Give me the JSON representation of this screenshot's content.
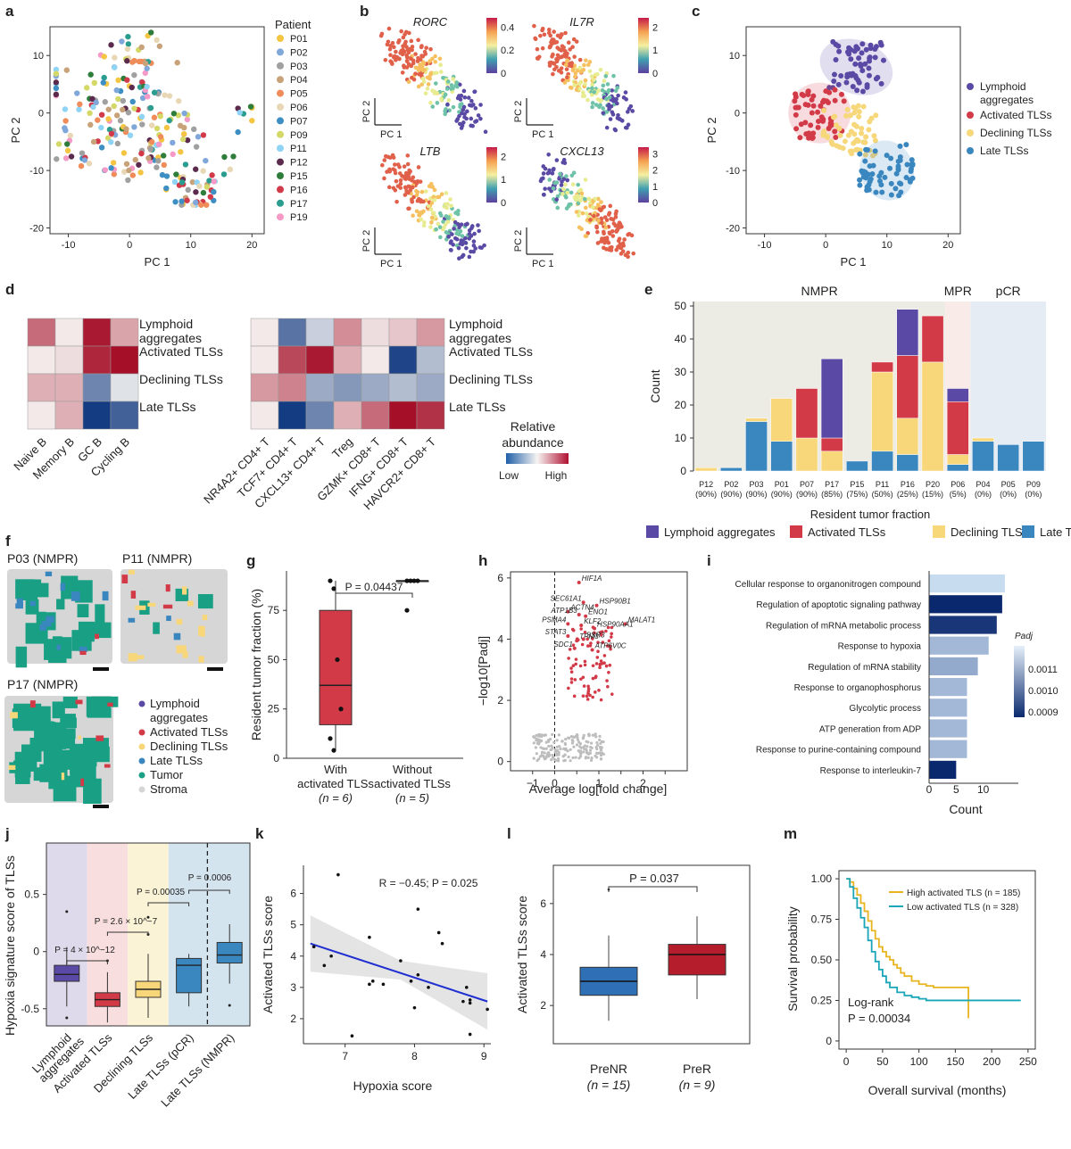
{
  "panel_labels": {
    "a": "a",
    "b": "b",
    "c": "c",
    "d": "d",
    "e": "e",
    "f": "f",
    "g": "g",
    "h": "h",
    "i": "i",
    "j": "j",
    "k": "k",
    "l": "l",
    "m": "m"
  },
  "colors": {
    "P01": "#f4c542",
    "P02": "#7fa7d9",
    "P03": "#a0a0a0",
    "P04": "#c8a279",
    "P05": "#f08b5a",
    "P06": "#e8d7b4",
    "P07": "#3d8fc3",
    "P09": "#d3d866",
    "P11": "#8fd3f5",
    "P12": "#5b2a4d",
    "P15": "#2f7d3b",
    "P16": "#d23a4a",
    "P17": "#2a9d8f",
    "P19": "#f59ac7",
    "lymphoid": "#5b4aa5",
    "activated": "#d33a48",
    "declining": "#f8d77a",
    "late": "#3a87c0",
    "tumor": "#19a084",
    "stroma": "#d6d6d6"
  },
  "panel_a": {
    "chart_data": {
      "type": "scatter",
      "xlabel": "PC 1",
      "ylabel": "PC 2",
      "xlim": [
        -13,
        22
      ],
      "ylim": [
        -21,
        15
      ],
      "xticks": [
        -10,
        0,
        10,
        20
      ],
      "yticks": [
        -20,
        -10,
        0,
        10
      ],
      "legend_title": "Patient",
      "legend": [
        "P01",
        "P02",
        "P03",
        "P04",
        "P05",
        "P06",
        "P07",
        "P09",
        "P11",
        "P12",
        "P15",
        "P16",
        "P17",
        "P19"
      ],
      "points": [
        [
          -12,
          6
        ],
        [
          -10,
          -5
        ],
        [
          -8,
          -2
        ],
        [
          -6,
          4
        ],
        [
          -5,
          -7
        ],
        [
          -4,
          1
        ],
        [
          -3,
          -3
        ],
        [
          -2,
          7
        ],
        [
          -1,
          -1
        ],
        [
          0,
          3
        ],
        [
          1,
          -5
        ],
        [
          2,
          12
        ],
        [
          3,
          2
        ],
        [
          4,
          -8
        ],
        [
          5,
          6
        ],
        [
          6,
          -2
        ],
        [
          7,
          -10
        ],
        [
          8,
          0
        ],
        [
          9,
          -13
        ],
        [
          10,
          -6
        ],
        [
          11,
          -14
        ],
        [
          12,
          -15
        ],
        [
          13,
          -12
        ],
        [
          14,
          -10
        ],
        [
          20,
          -2
        ],
        [
          -3,
          9
        ],
        [
          0,
          10
        ],
        [
          2,
          -9
        ],
        [
          5,
          -4
        ],
        [
          -1,
          -8
        ]
      ]
    }
  },
  "panel_b": {
    "genes": [
      "RORC",
      "IL7R",
      "LTB",
      "CXCL13"
    ],
    "scales": [
      [
        "0",
        "0.2",
        "0.4"
      ],
      [
        "0",
        "1",
        "2"
      ],
      [
        "0",
        "1",
        "2"
      ],
      [
        "0",
        "1",
        "2",
        "3"
      ]
    ],
    "xlabel": "PC 1",
    "ylabel": "PC 2"
  },
  "panel_c": {
    "chart_data": {
      "type": "scatter",
      "xlabel": "PC 1",
      "ylabel": "PC 2",
      "xlim": [
        -13,
        22
      ],
      "ylim": [
        -21,
        15
      ],
      "xticks": [
        -10,
        0,
        10,
        20
      ],
      "yticks": [
        -20,
        -10,
        0,
        10
      ],
      "legend": [
        "Lymphoid aggregates",
        "Activated TLSs",
        "Declining TLSs",
        "Late TLSs"
      ],
      "centers": [
        [
          5,
          8
        ],
        [
          -1,
          0
        ],
        [
          4,
          -3
        ],
        [
          10,
          -10
        ]
      ]
    }
  },
  "panel_d": {
    "chart_data": {
      "type": "heatmap",
      "rows": [
        "Lymphoid aggregates",
        "Activated TLSs",
        "Declining TLSs",
        "Late TLSs"
      ],
      "row_lines": [
        [
          "Lymphoid",
          "aggregates"
        ],
        [
          "Activated TLSs"
        ],
        [
          "Declining TLSs"
        ],
        [
          "Late TLSs"
        ]
      ],
      "cols_b": [
        "Naive B",
        "Memory B",
        "GC B",
        "Cycling B"
      ],
      "cols_t": [
        "NR4A2+ CD4+ T",
        "TCF7+ CD4+ T",
        "CXCL13+ CD4+ T",
        "Treg",
        "GZMK+ CD8+ T",
        "IFNG+ CD8+ T",
        "HAVCR2+ CD8+ T"
      ],
      "values_b": [
        [
          0.6,
          0.05,
          0.95,
          0.35
        ],
        [
          0.05,
          0.1,
          0.9,
          1.0
        ],
        [
          0.3,
          0.3,
          -0.6,
          -0.1
        ],
        [
          0.05,
          0.3,
          -1.0,
          -0.8
        ]
      ],
      "values_t": [
        [
          0.05,
          -0.7,
          -0.2,
          0.45,
          0.1,
          0.2,
          0.4
        ],
        [
          0.05,
          0.75,
          0.95,
          0.3,
          0.05,
          -0.95,
          -0.3
        ],
        [
          0.4,
          0.5,
          -0.4,
          -0.5,
          -0.4,
          -0.3,
          -0.4
        ],
        [
          0.05,
          -1.0,
          -0.6,
          0.3,
          0.6,
          1.0,
          0.85
        ]
      ],
      "legend_title": [
        "Relative",
        "abundance"
      ],
      "legend_low": "Low",
      "legend_high": "High"
    }
  },
  "panel_e": {
    "chart_data": {
      "type": "bar",
      "ylabel": "Count",
      "xlabel": "Resident tumor fraction",
      "ylim": [
        0,
        50
      ],
      "yticks": [
        0,
        10,
        20,
        30,
        40,
        50
      ],
      "groups": [
        "NMPR",
        "MPR",
        "pCR"
      ],
      "categories": [
        "P12",
        "P02",
        "P03",
        "P01",
        "P07",
        "P17",
        "P15",
        "P11",
        "P16",
        "P20",
        "P06",
        "P04",
        "P05",
        "P09"
      ],
      "fractions": [
        "(90%)",
        "(90%)",
        "(90%)",
        "(90%)",
        "(90%)",
        "(85%)",
        "(75%)",
        "(50%)",
        "(25%)",
        "(15%)",
        "(5%)",
        "(0%)",
        "(0%)",
        "(0%)"
      ],
      "series": [
        {
          "name": "Late TLSs",
          "values": [
            0,
            1,
            15,
            9,
            0,
            0,
            3,
            6,
            5,
            0,
            2,
            9,
            8,
            9
          ]
        },
        {
          "name": "Declining TLSs",
          "values": [
            1,
            0,
            1,
            13,
            10,
            6,
            0,
            24,
            11,
            33,
            3,
            1,
            0,
            0
          ]
        },
        {
          "name": "Activated TLSs",
          "values": [
            0,
            0,
            0,
            0,
            15,
            4,
            0,
            3,
            19,
            14,
            16,
            0,
            0,
            0
          ]
        },
        {
          "name": "Lymphoid aggregates",
          "values": [
            0,
            0,
            0,
            0,
            0,
            24,
            0,
            0,
            14,
            0,
            4,
            0,
            0,
            0
          ]
        }
      ],
      "legend": [
        "Lymphoid aggregates",
        "Activated TLSs",
        "Declining TLSs",
        "Late TLSs"
      ]
    }
  },
  "panel_f": {
    "titles": [
      "P03 (NMPR)",
      "P11 (NMPR)",
      "P17 (NMPR)"
    ],
    "legend": [
      [
        "Lymphoid",
        "aggregates"
      ],
      [
        "Activated TLSs"
      ],
      [
        "Declining TLSs"
      ],
      [
        "Late TLSs"
      ],
      [
        "Tumor"
      ],
      [
        "Stroma"
      ]
    ]
  },
  "panel_g": {
    "chart_data": {
      "type": "box",
      "ylabel": "Resident tumor fraction (%)",
      "ylim": [
        0,
        95
      ],
      "yticks": [
        0,
        25,
        50,
        75
      ],
      "groups": [
        {
          "lines": [
            "With",
            "activated TLSs",
            "(n = 6)"
          ],
          "q1": 17,
          "median": 37,
          "q3": 75,
          "min": 4,
          "max": 90,
          "points": [
            90,
            86,
            50,
            25,
            10,
            4
          ]
        },
        {
          "lines": [
            "Without",
            "activated TLSs",
            "(n = 5)"
          ],
          "q1": 90,
          "median": 90,
          "q3": 90,
          "min": 90,
          "max": 90,
          "points": [
            90,
            90,
            90,
            90,
            75
          ]
        }
      ],
      "annotation": "P = 0.04437"
    }
  },
  "panel_h": {
    "chart_data": {
      "type": "volcano",
      "xlabel": "Average log[fold change]",
      "ylabel": "−log10[Padj]",
      "xlim": [
        -1,
        3
      ],
      "ylim": [
        -0.3,
        6.2
      ],
      "xticks": [
        -0.5,
        0,
        0.5,
        1,
        1.5,
        2,
        2.5
      ],
      "yticks": [
        0,
        2,
        4,
        6
      ],
      "genes": [
        "HIF1A",
        "SEC61A1",
        "HSP90B1",
        "ACTN4",
        "ATP1B3",
        "ENO1",
        "MALAT1",
        "PSMA4",
        "KLF2",
        "HSP90AA1",
        "STAT3",
        "TPM3",
        "SSR3",
        "SDC1",
        "ATP6V0C"
      ],
      "gene_points": [
        [
          0.55,
          5.85
        ],
        [
          0.65,
          5.2
        ],
        [
          0.95,
          5.1
        ],
        [
          0.3,
          4.9
        ],
        [
          0.55,
          4.8
        ],
        [
          0.7,
          4.75
        ],
        [
          1.6,
          4.5
        ],
        [
          0.3,
          4.5
        ],
        [
          0.6,
          4.45
        ],
        [
          0.9,
          4.35
        ],
        [
          0.3,
          4.1
        ],
        [
          0.5,
          3.95
        ],
        [
          0.65,
          4.0
        ],
        [
          0.45,
          3.7
        ],
        [
          0.85,
          3.65
        ]
      ]
    }
  },
  "panel_i": {
    "chart_data": {
      "type": "bar",
      "xlabel": "Count",
      "xlim": [
        0,
        15
      ],
      "xticks": [
        0,
        5,
        10
      ],
      "categories": [
        "Cellular response to organonitrogen compound",
        "Regulation of apoptotic signaling pathway",
        "Regulation of mRNA metabolic process",
        "Response to hypoxia",
        "Regulation of mRNA stability",
        "Response to organophosphorus",
        "Glycolytic process",
        "ATP generation from ADP",
        "Response to purine-containing compound",
        "Response to interleukin-7"
      ],
      "values": [
        14,
        13.5,
        12.5,
        11,
        9,
        7,
        7,
        7,
        7,
        5
      ],
      "padj": [
        0.00115,
        0.0009,
        0.00092,
        0.0011,
        0.00108,
        0.0011,
        0.0011,
        0.0011,
        0.0011,
        0.0009
      ],
      "legend_title": "Padj",
      "legend_ticks": [
        "0.0011",
        "0.0010",
        "0.0009"
      ]
    }
  },
  "panel_j": {
    "chart_data": {
      "type": "box",
      "ylabel": "Hypoxia signature score of TLSs",
      "ylim": [
        -0.65,
        0.95
      ],
      "yticks": [
        -0.5,
        0,
        0.5
      ],
      "categories": [
        [
          "Lymphoid",
          "aggregates"
        ],
        [
          "Activated TLSs"
        ],
        [
          "Declining TLSs"
        ],
        [
          "Late TLSs (pCR)"
        ],
        [
          "Late TLSs (NMPR)"
        ]
      ],
      "boxes": [
        {
          "q1": -0.26,
          "median": -0.2,
          "q3": -0.12,
          "min": -0.48,
          "max": 0.04,
          "out": [
            -0.58,
            0.35
          ]
        },
        {
          "q1": -0.48,
          "median": -0.42,
          "q3": -0.36,
          "min": -0.62,
          "max": -0.18,
          "out": [
            -0.08
          ]
        },
        {
          "q1": -0.4,
          "median": -0.33,
          "q3": -0.26,
          "min": -0.58,
          "max": -0.02,
          "out": [
            0.15,
            0.3
          ]
        },
        {
          "q1": -0.36,
          "median": -0.12,
          "q3": -0.06,
          "min": -0.48,
          "max": -0.02,
          "out": []
        },
        {
          "q1": -0.1,
          "median": -0.03,
          "q3": 0.08,
          "min": -0.28,
          "max": 0.24,
          "out": [
            -0.47
          ]
        }
      ],
      "annotations": [
        "P = 4 × 10^−12",
        "P = 2.6 × 10^−7",
        "P = 0.00035",
        "P = 0.0006"
      ]
    }
  },
  "panel_k": {
    "chart_data": {
      "type": "scatter",
      "xlabel": "Hypoxia score",
      "ylabel": "Activated TLSs score",
      "xlim": [
        6.4,
        9.1
      ],
      "ylim": [
        1.2,
        6.9
      ],
      "xticks": [
        7,
        8,
        9
      ],
      "yticks": [
        2,
        3,
        4,
        5,
        6
      ],
      "points": [
        [
          6.9,
          6.6
        ],
        [
          8.05,
          5.5
        ],
        [
          8.35,
          4.75
        ],
        [
          8.4,
          4.4
        ],
        [
          7.35,
          4.6
        ],
        [
          6.55,
          4.3
        ],
        [
          6.7,
          3.7
        ],
        [
          6.8,
          4.0
        ],
        [
          7.8,
          3.85
        ],
        [
          7.4,
          3.2
        ],
        [
          7.35,
          3.1
        ],
        [
          7.55,
          3.1
        ],
        [
          7.95,
          3.2
        ],
        [
          8.05,
          3.4
        ],
        [
          8.2,
          3.0
        ],
        [
          8.75,
          3.0
        ],
        [
          8.7,
          2.55
        ],
        [
          8.8,
          2.6
        ],
        [
          8.8,
          2.5
        ],
        [
          9.05,
          2.3
        ],
        [
          8.0,
          2.35
        ],
        [
          8.8,
          1.5
        ],
        [
          7.1,
          1.45
        ]
      ],
      "fit": [
        [
          6.5,
          4.4
        ],
        [
          9.05,
          2.55
        ]
      ],
      "annotation": "R = −0.45; P = 0.025"
    }
  },
  "panel_l": {
    "chart_data": {
      "type": "box",
      "ylabel": "Activated TLSs score",
      "ylim": [
        0.5,
        7.5
      ],
      "yticks": [
        2,
        4,
        6
      ],
      "groups": [
        {
          "lines": [
            "PreNR",
            "(n = 15)"
          ],
          "q1": 2.4,
          "median": 2.95,
          "q3": 3.5,
          "min": 1.4,
          "max": 4.75,
          "out": [
            6.55
          ]
        },
        {
          "lines": [
            "PreR",
            "(n = 9)"
          ],
          "q1": 3.2,
          "median": 4.0,
          "q3": 4.4,
          "min": 2.25,
          "max": 5.5,
          "out": []
        }
      ],
      "annotation": "P = 0.037"
    }
  },
  "panel_m": {
    "chart_data": {
      "type": "line",
      "xlabel": "Overall survival (months)",
      "ylabel": "Survival probability",
      "xlim": [
        -10,
        260
      ],
      "ylim": [
        -0.05,
        1.05
      ],
      "xticks": [
        0,
        50,
        100,
        150,
        200,
        250
      ],
      "yticks": [
        0,
        0.25,
        0.5,
        0.75,
        1.0
      ],
      "series": [
        {
          "name": "High activated TLS (n = 185)",
          "x": [
            0,
            5,
            10,
            15,
            20,
            25,
            30,
            35,
            40,
            45,
            50,
            55,
            60,
            65,
            70,
            75,
            80,
            90,
            100,
            110,
            120,
            140,
            160,
            165,
            168
          ],
          "y": [
            1,
            0.98,
            0.94,
            0.9,
            0.85,
            0.8,
            0.74,
            0.68,
            0.63,
            0.58,
            0.55,
            0.52,
            0.5,
            0.47,
            0.45,
            0.42,
            0.4,
            0.37,
            0.35,
            0.34,
            0.33,
            0.33,
            0.33,
            0.33,
            0.14
          ]
        },
        {
          "name": "Low activated TLS (n = 328)",
          "x": [
            0,
            5,
            10,
            15,
            20,
            25,
            30,
            35,
            40,
            45,
            50,
            55,
            60,
            70,
            80,
            90,
            100,
            110,
            120,
            150,
            200,
            240
          ],
          "y": [
            1,
            0.95,
            0.88,
            0.82,
            0.76,
            0.7,
            0.62,
            0.55,
            0.49,
            0.44,
            0.4,
            0.36,
            0.33,
            0.3,
            0.28,
            0.27,
            0.26,
            0.25,
            0.25,
            0.25,
            0.25,
            0.25
          ]
        }
      ],
      "annotation_lines": [
        "Log-rank",
        "P = 0.00034"
      ]
    }
  }
}
